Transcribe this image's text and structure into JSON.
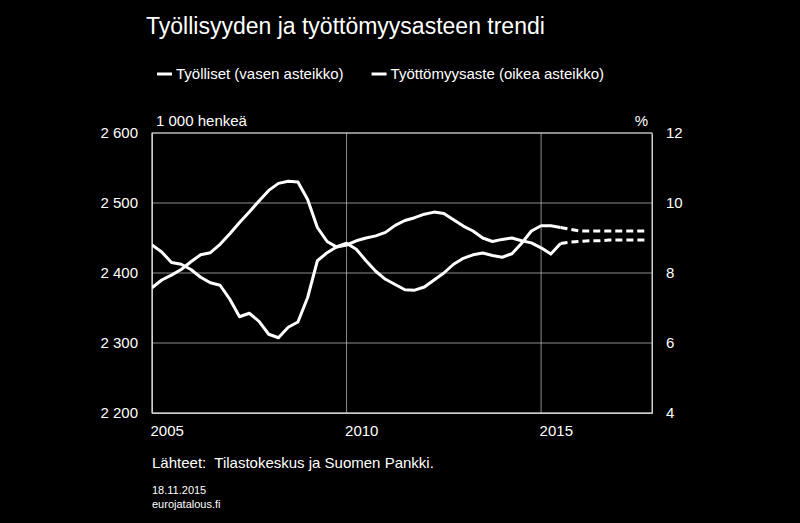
{
  "chart_data": {
    "type": "line",
    "title": "Työllisyyden ja työttömyysasteen trendi",
    "ylabel": "1 000 henkeä",
    "y2label": "%",
    "source": "Lähteet:  Tilastokeskus ja Suomen Pankki.",
    "date": "18.11.2015",
    "site": "eurojatalous.fi",
    "grid": true,
    "legend": "top",
    "x": [
      2005,
      2005.25,
      2005.5,
      2005.75,
      2006,
      2006.25,
      2006.5,
      2006.75,
      2007,
      2007.25,
      2007.5,
      2007.75,
      2008,
      2008.25,
      2008.5,
      2008.75,
      2009,
      2009.25,
      2009.5,
      2009.75,
      2010,
      2010.25,
      2010.5,
      2010.75,
      2011,
      2011.25,
      2011.5,
      2011.75,
      2012,
      2012.25,
      2012.5,
      2012.75,
      2013,
      2013.25,
      2013.5,
      2013.75,
      2014,
      2014.25,
      2014.5,
      2014.75,
      2015,
      2015.25,
      2015.5,
      2015.75,
      2016,
      2016.25,
      2016.5,
      2016.75,
      2017,
      2017.25,
      2017.5,
      2017.75
    ],
    "xlim": [
      2005,
      2017.85
    ],
    "xticks": [
      2005,
      2010,
      2015
    ],
    "ylim": [
      2200,
      2600
    ],
    "yticks": [
      {
        "value": 2200,
        "label": "2 200"
      },
      {
        "value": 2300,
        "label": "2 300"
      },
      {
        "value": 2400,
        "label": "2 400"
      },
      {
        "value": 2500,
        "label": "2 500"
      },
      {
        "value": 2600,
        "label": "2 600"
      }
    ],
    "y2lim": [
      4,
      12
    ],
    "y2ticks": [
      4,
      6,
      8,
      10,
      12
    ],
    "series": [
      {
        "name": "Työlliset (vasen asteikko)",
        "color": "#ffffff",
        "line_style": "solid",
        "values": [
          2379,
          2390,
          2397,
          2405,
          2416,
          2426,
          2429,
          2441,
          2456,
          2472,
          2487,
          2503,
          2518,
          2528,
          2531,
          2530,
          2505,
          2465,
          2445,
          2437,
          2440,
          2446,
          2450,
          2453,
          2458,
          2468,
          2475,
          2479,
          2484,
          2487,
          2485,
          2476,
          2467,
          2460,
          2450,
          2445,
          2448,
          2450,
          2446,
          2443,
          2436,
          2427,
          2442,
          null,
          null,
          null,
          null,
          null,
          null,
          null,
          null,
          null
        ]
      },
      {
        "name": "Työttömyysaste (oikea asteikko)",
        "color": "#ffffff",
        "line_style": "solid",
        "axis": "y2",
        "values": [
          8.8,
          8.6,
          8.3,
          8.25,
          8.1,
          7.88,
          7.72,
          7.65,
          7.25,
          6.75,
          6.85,
          6.62,
          6.25,
          6.15,
          6.45,
          6.6,
          7.3,
          8.35,
          8.58,
          8.75,
          8.85,
          8.68,
          8.35,
          8.05,
          7.82,
          7.67,
          7.52,
          7.51,
          7.6,
          7.8,
          8,
          8.25,
          8.42,
          8.52,
          8.57,
          8.5,
          8.45,
          8.55,
          8.85,
          9.2,
          9.35,
          9.35,
          9.3,
          null,
          null,
          null,
          null,
          null,
          null,
          null,
          null,
          null
        ]
      },
      {
        "color": "#ffffff",
        "line_style": "dashed",
        "values": [
          null,
          null,
          null,
          null,
          null,
          null,
          null,
          null,
          null,
          null,
          null,
          null,
          null,
          null,
          null,
          null,
          null,
          null,
          null,
          null,
          null,
          null,
          null,
          null,
          null,
          null,
          null,
          null,
          null,
          null,
          null,
          null,
          null,
          null,
          null,
          null,
          null,
          null,
          null,
          null,
          null,
          null,
          2442,
          2444,
          2445,
          2446,
          2446,
          2447,
          2447,
          2447,
          2447,
          2447
        ]
      },
      {
        "color": "#ffffff",
        "line_style": "dashed",
        "axis": "y2",
        "values": [
          null,
          null,
          null,
          null,
          null,
          null,
          null,
          null,
          null,
          null,
          null,
          null,
          null,
          null,
          null,
          null,
          null,
          null,
          null,
          null,
          null,
          null,
          null,
          null,
          null,
          null,
          null,
          null,
          null,
          null,
          null,
          null,
          null,
          null,
          null,
          null,
          null,
          null,
          null,
          null,
          null,
          null,
          9.3,
          9.25,
          9.2,
          9.2,
          9.2,
          9.2,
          9.2,
          9.2,
          9.2,
          9.2
        ]
      }
    ]
  }
}
